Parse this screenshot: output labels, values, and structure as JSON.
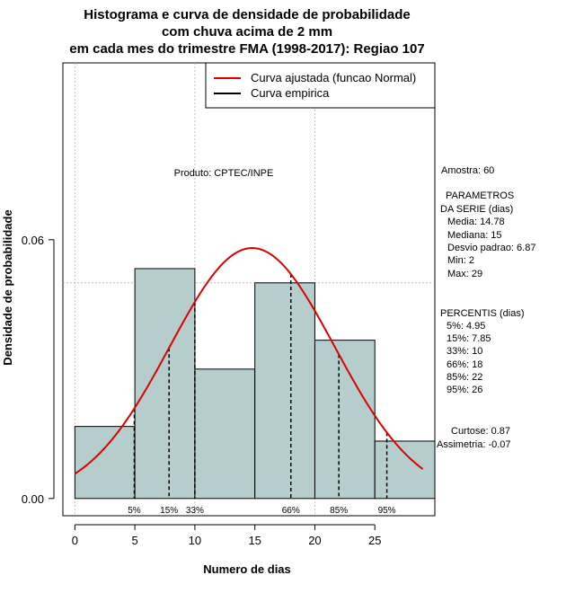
{
  "chart_data": {
    "type": "bar",
    "title_lines": [
      "Histograma e curva de densidade de probabilidade",
      "com chuva acima de 2 mm",
      "em cada mes do trimestre FMA (1998-2017): Regiao 107"
    ],
    "xlabel": "Numero de dias",
    "ylabel": "Densidade de probabilidade",
    "xlim": [
      -1,
      30
    ],
    "ylim": [
      -0.004,
      0.101
    ],
    "x_ticks": [
      0,
      5,
      10,
      15,
      20,
      25
    ],
    "y_ticks": [
      0.0,
      0.06
    ],
    "y_tick_labels": [
      "0.00",
      "0.06"
    ],
    "grid": true,
    "grid_x": [
      0,
      10,
      20
    ],
    "grid_y": [
      0.05
    ],
    "bars": [
      {
        "from": 0,
        "to": 5,
        "density": 0.0167
      },
      {
        "from": 5,
        "to": 10,
        "density": 0.0533
      },
      {
        "from": 10,
        "to": 15,
        "density": 0.03
      },
      {
        "from": 15,
        "to": 20,
        "density": 0.05
      },
      {
        "from": 20,
        "to": 25,
        "density": 0.0367
      },
      {
        "from": 25,
        "to": 30,
        "density": 0.0133
      }
    ],
    "bar_color": "#b6cdcd",
    "normal_curve": {
      "mean": 14.78,
      "sd": 6.87,
      "x_from": 0,
      "x_to": 29,
      "color": "#dd0000"
    },
    "percentile_markers": [
      {
        "label": "5%",
        "x": 4.95
      },
      {
        "label": "15%",
        "x": 7.85
      },
      {
        "label": "33%",
        "x": 10
      },
      {
        "label": "66%",
        "x": 18
      },
      {
        "label": "85%",
        "x": 22
      },
      {
        "label": "95%",
        "x": 26
      }
    ],
    "legend": {
      "position": "top-right",
      "items": [
        {
          "label": "Curva ajustada (funcao Normal)",
          "color": "#dd0000"
        },
        {
          "label": "Curva empirica",
          "color": "#000000"
        }
      ]
    },
    "product_label": "Produto: CPTEC/INPE",
    "stats": {
      "amostra": "Amostra: 60",
      "parametros_title_1": "PARAMETROS",
      "parametros_title_2": "DA SERIE (dias)",
      "media": "Media: 14.78",
      "mediana": "Mediana: 15",
      "desvio": "Desvio padrao: 6.87",
      "min": "Min: 2",
      "max": "Max: 29",
      "percentis_title": "PERCENTIS (dias)",
      "p5": "5%: 4.95",
      "p15": "15%: 7.85",
      "p33": "33%: 10",
      "p66": "66%: 18",
      "p85": "85%: 22",
      "p95": "95%: 26",
      "curtose": "Curtose: 0.87",
      "assimetria": "Assimetria: -0.07"
    }
  }
}
